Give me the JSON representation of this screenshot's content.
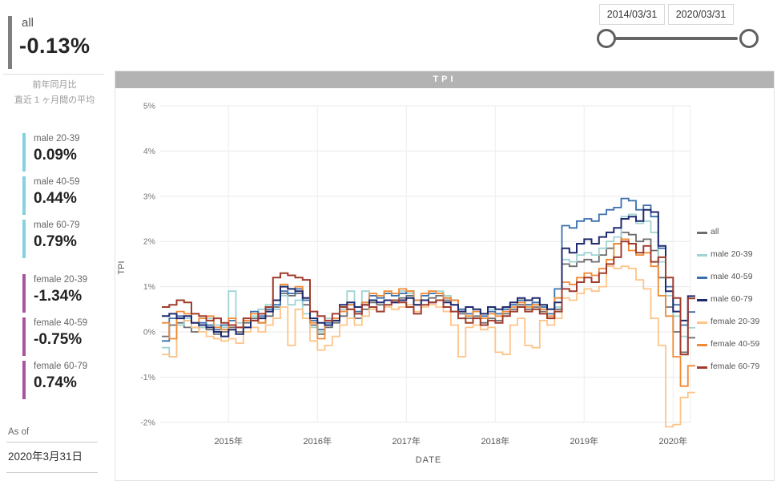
{
  "slicer": {
    "start_date": "2014/03/31",
    "end_date": "2020/03/31"
  },
  "kpi": {
    "all": {
      "label": "all",
      "value": "-0.13%",
      "accent": "#7f7f7f"
    },
    "subtitle_line1": "前年同月比",
    "subtitle_line2": "直近 1 ヶ月間の平均",
    "cards": [
      {
        "label": "male 20-39",
        "value": "0.09%",
        "accent": "#86d1e0"
      },
      {
        "label": "male 40-59",
        "value": "0.44%",
        "accent": "#86d1e0"
      },
      {
        "label": "male 60-79",
        "value": "0.79%",
        "accent": "#86d1e0"
      },
      {
        "label": "female 20-39",
        "value": "-1.34%",
        "accent": "#a9549e"
      },
      {
        "label": "female 40-59",
        "value": "-0.75%",
        "accent": "#a9549e"
      },
      {
        "label": "female 60-79",
        "value": "0.74%",
        "accent": "#a9549e"
      }
    ],
    "as_of_label": "As of",
    "as_of_date": "2020年3月31日"
  },
  "chart": {
    "title": "TPI",
    "title_bar_color": "#b3b3b3",
    "y_axis_label": "TPI",
    "x_axis_label": "DATE",
    "gridline_color": "#e9e9e9"
  },
  "chart_data": {
    "type": "line",
    "stepped": true,
    "title": "TPI",
    "xlabel": "DATE",
    "ylabel": "TPI",
    "ylim": [
      -2.35,
      5.35
    ],
    "y_ticks": [
      {
        "label": "5%",
        "value": 5
      },
      {
        "label": "4%",
        "value": 4
      },
      {
        "label": "3%",
        "value": 3
      },
      {
        "label": "2%",
        "value": 2
      },
      {
        "label": "1%",
        "value": 1
      },
      {
        "label": "0%",
        "value": 0
      },
      {
        "label": "-1%",
        "value": -1
      },
      {
        "label": "-2%",
        "value": -2
      }
    ],
    "x_year_ticks": [
      {
        "label": "2015年",
        "month_index": 9
      },
      {
        "label": "2016年",
        "month_index": 21
      },
      {
        "label": "2017年",
        "month_index": 33
      },
      {
        "label": "2018年",
        "month_index": 45
      },
      {
        "label": "2019年",
        "month_index": 57
      },
      {
        "label": "2020年",
        "month_index": 69
      }
    ],
    "legend_position": "right",
    "x_months": [
      "2014/04",
      "2014/05",
      "2014/06",
      "2014/07",
      "2014/08",
      "2014/09",
      "2014/10",
      "2014/11",
      "2014/12",
      "2015/01",
      "2015/02",
      "2015/03",
      "2015/04",
      "2015/05",
      "2015/06",
      "2015/07",
      "2015/08",
      "2015/09",
      "2015/10",
      "2015/11",
      "2015/12",
      "2016/01",
      "2016/02",
      "2016/03",
      "2016/04",
      "2016/05",
      "2016/06",
      "2016/07",
      "2016/08",
      "2016/09",
      "2016/10",
      "2016/11",
      "2016/12",
      "2017/01",
      "2017/02",
      "2017/03",
      "2017/04",
      "2017/05",
      "2017/06",
      "2017/07",
      "2017/08",
      "2017/09",
      "2017/10",
      "2017/11",
      "2017/12",
      "2018/01",
      "2018/02",
      "2018/03",
      "2018/04",
      "2018/05",
      "2018/06",
      "2018/07",
      "2018/08",
      "2018/09",
      "2018/10",
      "2018/11",
      "2018/12",
      "2019/01",
      "2019/02",
      "2019/03",
      "2019/04",
      "2019/05",
      "2019/06",
      "2019/07",
      "2019/08",
      "2019/09",
      "2019/10",
      "2019/11",
      "2019/12",
      "2020/01",
      "2020/02",
      "2020/03"
    ],
    "series": [
      {
        "name": "all",
        "color": "#6e6e6e",
        "values": [
          -0.1,
          0.15,
          0.2,
          0.1,
          0.0,
          0.1,
          0.05,
          -0.05,
          0.0,
          0.1,
          0.0,
          0.2,
          0.3,
          0.2,
          0.35,
          0.55,
          0.85,
          0.8,
          0.85,
          0.6,
          0.15,
          -0.05,
          0.1,
          0.2,
          0.35,
          0.5,
          0.3,
          0.5,
          0.65,
          0.6,
          0.7,
          0.65,
          0.75,
          0.8,
          0.6,
          0.7,
          0.75,
          0.8,
          0.7,
          0.6,
          0.4,
          0.3,
          0.35,
          0.2,
          0.3,
          0.25,
          0.4,
          0.5,
          0.6,
          0.5,
          0.55,
          0.45,
          0.3,
          0.5,
          1.5,
          1.45,
          1.55,
          1.6,
          1.55,
          1.7,
          1.85,
          1.95,
          2.2,
          2.15,
          2.0,
          2.05,
          1.8,
          1.2,
          0.55,
          0.0,
          -0.45,
          -0.13
        ]
      },
      {
        "name": "male 20-39",
        "color": "#9fd4d2",
        "values": [
          -0.35,
          -0.55,
          0.15,
          0.3,
          0.2,
          0.1,
          0.3,
          0.15,
          0.1,
          0.9,
          0.2,
          0.1,
          0.35,
          0.5,
          0.6,
          0.5,
          0.8,
          0.6,
          0.7,
          0.4,
          0.1,
          0.0,
          0.3,
          0.3,
          0.5,
          0.9,
          0.55,
          0.9,
          0.8,
          0.75,
          0.85,
          0.8,
          0.9,
          0.85,
          0.7,
          0.8,
          0.85,
          0.9,
          0.8,
          0.7,
          0.5,
          0.4,
          0.5,
          0.4,
          0.5,
          0.4,
          0.55,
          0.6,
          0.7,
          0.6,
          0.65,
          0.5,
          0.4,
          0.55,
          1.6,
          1.55,
          1.7,
          1.75,
          1.7,
          1.85,
          2.0,
          2.1,
          2.55,
          2.6,
          2.4,
          2.45,
          2.2,
          1.55,
          0.8,
          0.35,
          -0.1,
          0.09
        ]
      },
      {
        "name": "male 40-59",
        "color": "#3a6fad",
        "values": [
          -0.2,
          0.3,
          0.35,
          0.25,
          0.1,
          0.2,
          0.15,
          0.05,
          0.15,
          0.25,
          0.1,
          0.3,
          0.45,
          0.35,
          0.5,
          0.6,
          0.9,
          0.85,
          0.95,
          0.7,
          0.25,
          0.05,
          0.2,
          0.3,
          0.45,
          0.6,
          0.45,
          0.65,
          0.8,
          0.75,
          0.85,
          0.8,
          0.85,
          0.9,
          0.7,
          0.8,
          0.85,
          0.85,
          0.75,
          0.7,
          0.5,
          0.4,
          0.45,
          0.35,
          0.45,
          0.4,
          0.5,
          0.6,
          0.7,
          0.6,
          0.65,
          0.55,
          0.4,
          0.95,
          2.35,
          2.3,
          2.45,
          2.5,
          2.45,
          2.6,
          2.7,
          2.75,
          2.95,
          2.9,
          2.7,
          2.8,
          2.55,
          1.85,
          1.0,
          0.6,
          0.15,
          0.44
        ]
      },
      {
        "name": "male 60-79",
        "color": "#1f2a6e",
        "values": [
          0.35,
          0.4,
          0.3,
          0.35,
          0.2,
          0.15,
          0.1,
          0.0,
          -0.1,
          0.05,
          -0.05,
          0.1,
          0.25,
          0.3,
          0.45,
          0.7,
          1.0,
          0.95,
          0.9,
          0.75,
          0.3,
          0.2,
          0.15,
          0.25,
          0.6,
          0.65,
          0.55,
          0.6,
          0.7,
          0.65,
          0.7,
          0.65,
          0.7,
          0.75,
          0.6,
          0.7,
          0.65,
          0.7,
          0.65,
          0.6,
          0.45,
          0.55,
          0.5,
          0.4,
          0.55,
          0.5,
          0.55,
          0.65,
          0.75,
          0.7,
          0.75,
          0.6,
          0.5,
          0.65,
          1.85,
          1.75,
          1.95,
          2.05,
          1.95,
          2.1,
          2.2,
          2.3,
          2.5,
          2.55,
          2.45,
          2.7,
          2.65,
          1.9,
          0.9,
          0.45,
          0.25,
          0.79
        ]
      },
      {
        "name": "female 20-39",
        "color": "#fec488",
        "values": [
          -0.5,
          -0.55,
          0.3,
          0.25,
          0.1,
          0.0,
          -0.1,
          -0.15,
          -0.2,
          -0.15,
          -0.25,
          0.0,
          0.1,
          0.0,
          0.15,
          0.3,
          0.55,
          -0.3,
          0.5,
          0.3,
          -0.2,
          -0.4,
          -0.3,
          -0.1,
          0.15,
          0.3,
          0.15,
          0.35,
          0.5,
          0.45,
          0.55,
          0.5,
          0.55,
          0.6,
          0.45,
          0.55,
          0.6,
          0.55,
          0.45,
          0.15,
          -0.55,
          0.1,
          0.15,
          0.05,
          0.1,
          -0.45,
          -0.5,
          0.15,
          0.3,
          -0.3,
          -0.35,
          0.25,
          0.15,
          0.3,
          0.75,
          0.7,
          0.85,
          0.95,
          0.9,
          1.0,
          1.45,
          1.4,
          1.45,
          1.4,
          1.15,
          0.95,
          0.3,
          -0.3,
          -2.1,
          -2.05,
          -1.45,
          -1.34
        ]
      },
      {
        "name": "female 40-59",
        "color": "#f18a34",
        "values": [
          0.2,
          -0.15,
          0.45,
          0.4,
          0.2,
          0.3,
          0.35,
          0.1,
          0.05,
          0.3,
          0.1,
          0.25,
          0.4,
          0.2,
          0.45,
          0.7,
          1.05,
          0.95,
          1.0,
          0.75,
          0.2,
          -0.15,
          0.25,
          0.3,
          0.45,
          0.6,
          0.4,
          0.65,
          0.85,
          0.8,
          0.9,
          0.85,
          0.95,
          0.9,
          0.7,
          0.85,
          0.9,
          0.85,
          0.75,
          0.7,
          0.45,
          0.35,
          0.45,
          0.3,
          0.4,
          0.35,
          0.45,
          0.55,
          0.65,
          0.55,
          0.6,
          0.5,
          0.35,
          0.75,
          1.1,
          1.05,
          1.2,
          1.3,
          1.25,
          1.4,
          1.6,
          1.95,
          2.05,
          1.8,
          1.7,
          1.75,
          1.45,
          0.8,
          0.35,
          -0.55,
          -1.2,
          -0.75
        ]
      },
      {
        "name": "female 60-79",
        "color": "#a03c2e",
        "values": [
          0.55,
          0.6,
          0.7,
          0.65,
          0.4,
          0.35,
          0.25,
          0.3,
          0.2,
          0.15,
          0.1,
          0.3,
          0.25,
          0.4,
          0.55,
          1.2,
          1.3,
          1.25,
          1.2,
          1.15,
          0.45,
          0.35,
          0.25,
          0.4,
          0.55,
          0.5,
          0.4,
          0.6,
          0.55,
          0.45,
          0.6,
          0.7,
          0.65,
          0.55,
          0.4,
          0.6,
          0.65,
          0.7,
          0.55,
          0.45,
          0.3,
          0.2,
          0.3,
          0.15,
          0.25,
          0.2,
          0.35,
          0.45,
          0.55,
          0.45,
          0.5,
          0.4,
          0.3,
          0.45,
          0.95,
          0.9,
          1.1,
          1.2,
          1.1,
          1.3,
          1.5,
          1.65,
          2.0,
          1.95,
          1.75,
          1.9,
          1.55,
          1.65,
          1.2,
          0.75,
          -0.5,
          0.74
        ]
      }
    ]
  }
}
